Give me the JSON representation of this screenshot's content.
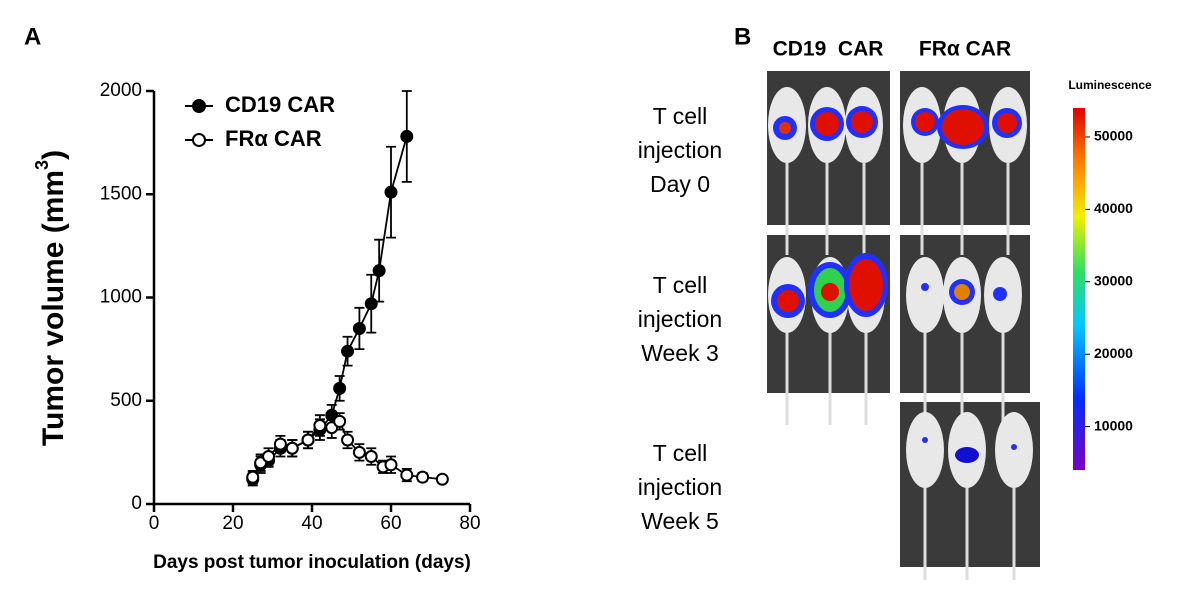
{
  "panel_labels": [
    "A",
    "B"
  ],
  "chart_data": {
    "type": "line",
    "xlabel": "Days post tumor inoculation (days)",
    "ylabel": {
      "text": "Tumor volume (mm",
      "sup": "3",
      "end": ")"
    },
    "xlim": [
      0,
      80
    ],
    "xticks": [
      0,
      20,
      40,
      60,
      80
    ],
    "ylim": [
      0,
      2000
    ],
    "yticks": [
      0,
      500,
      1000,
      1500,
      2000
    ],
    "legend": "upper left",
    "series": [
      {
        "name": "CD19 CAR",
        "color": "#000000",
        "marker": "filled",
        "x": [
          25,
          27,
          29,
          32,
          35,
          39,
          42,
          45,
          47,
          49,
          52,
          55,
          57,
          60,
          64
        ],
        "values": [
          120,
          190,
          210,
          270,
          270,
          310,
          360,
          430,
          560,
          740,
          850,
          970,
          1130,
          1510,
          1780
        ],
        "errors": [
          30,
          40,
          30,
          40,
          40,
          40,
          50,
          50,
          60,
          70,
          100,
          140,
          150,
          220,
          220
        ]
      },
      {
        "name": "FRα CAR",
        "color": "#000000",
        "marker": "open",
        "x": [
          25,
          27,
          29,
          32,
          35,
          39,
          42,
          45,
          47,
          49,
          52,
          55,
          58,
          60,
          64,
          68,
          73
        ],
        "values": [
          130,
          200,
          230,
          290,
          270,
          310,
          380,
          370,
          400,
          310,
          250,
          230,
          180,
          190,
          140,
          130,
          120
        ],
        "errors": [
          30,
          40,
          40,
          40,
          40,
          40,
          50,
          50,
          40,
          40,
          40,
          40,
          30,
          40,
          30,
          20,
          15
        ]
      }
    ]
  },
  "imaging": {
    "columns": [
      "CD19  CAR",
      "FRα CAR"
    ],
    "rows": [
      [
        "T cell",
        "injection",
        "Day 0"
      ],
      [
        "T cell",
        "injection",
        "Week 3"
      ],
      [
        "T cell",
        "injection",
        "Week 5"
      ]
    ],
    "colorbar": {
      "title": "Luminescence",
      "lim": [
        4000,
        54000
      ],
      "ticks": [
        50000,
        40000,
        30000,
        20000,
        10000
      ]
    }
  }
}
